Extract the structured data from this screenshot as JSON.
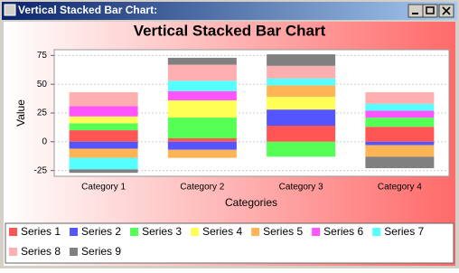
{
  "window_title": "Vertical Stacked Bar Chart:",
  "chart_data": {
    "type": "stacked_bar",
    "title": "Vertical Stacked Bar Chart",
    "x_label": "Categories",
    "y_label": "Value",
    "categories": [
      "Category 1",
      "Category 2",
      "Category 3",
      "Category 4"
    ],
    "series": [
      {
        "name": "Series 1",
        "color": "#ff5555",
        "values": [
          10,
          3,
          14,
          13
        ]
      },
      {
        "name": "Series 2",
        "color": "#5555ff",
        "values": [
          -6,
          -7,
          14,
          -3
        ]
      },
      {
        "name": "Series 3",
        "color": "#55ff55",
        "values": [
          6,
          18,
          -13,
          8
        ]
      },
      {
        "name": "Series 4",
        "color": "#ffff55",
        "values": [
          6,
          15,
          11,
          0
        ]
      },
      {
        "name": "Series 5",
        "color": "#ffb455",
        "values": [
          -8,
          -7,
          10,
          -10
        ]
      },
      {
        "name": "Series 6",
        "color": "#ff55ff",
        "values": [
          9,
          8,
          0,
          6
        ]
      },
      {
        "name": "Series 7",
        "color": "#55ffff",
        "values": [
          -10,
          9,
          6,
          6
        ]
      },
      {
        "name": "Series 8",
        "color": "#ffafaf",
        "values": [
          12,
          14,
          11,
          10
        ]
      },
      {
        "name": "Series 9",
        "color": "#808080",
        "values": [
          -3,
          6,
          10,
          -10
        ]
      }
    ],
    "ylim": [
      -30,
      80
    ],
    "yticks": [
      -25,
      0,
      25,
      50,
      75
    ],
    "grid": true,
    "legend": "bottom"
  }
}
